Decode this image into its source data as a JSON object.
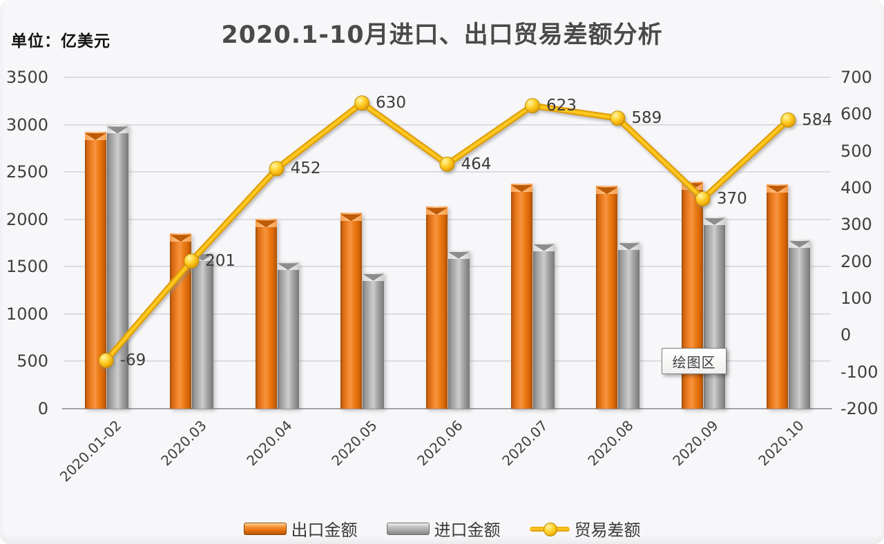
{
  "header": {
    "unit_label": "单位：亿美元",
    "title": "2020.1-10月进口、出口贸易差额分析"
  },
  "tooltip": {
    "text": "绘图区"
  },
  "chart_data": {
    "type": "combo-bar-line",
    "title": "2020.1-10月进口、出口贸易差额分析",
    "unit": "亿美元",
    "categories": [
      "2020.01-02",
      "2020.03",
      "2020.04",
      "2020.05",
      "2020.06",
      "2020.07",
      "2020.08",
      "2020.09",
      "2020.10"
    ],
    "series": [
      {
        "key": "export",
        "name": "出口金额",
        "chart": "bar",
        "axis": "left",
        "color": "#ED7420",
        "values": [
          2925,
          1851,
          2003,
          2068,
          2136,
          2376,
          2353,
          2398,
          2372
        ]
      },
      {
        "key": "import",
        "name": "进口金额",
        "chart": "bar",
        "axis": "left",
        "color": "#A9A9A9",
        "values": [
          2994,
          1650,
          1551,
          1438,
          1672,
          1753,
          1764,
          2028,
          1788
        ]
      },
      {
        "key": "balance",
        "name": "贸易差额",
        "chart": "line",
        "axis": "right",
        "color": "#FFC000",
        "values": [
          -69,
          201,
          452,
          630,
          464,
          623,
          589,
          370,
          584
        ],
        "point_labels": [
          "-69",
          "201",
          "452",
          "630",
          "464",
          "623",
          "589",
          "370",
          "584"
        ]
      }
    ],
    "left_axis": {
      "min": 0,
      "max": 3500,
      "step": 500,
      "tick_labels": [
        "0",
        "500",
        "1000",
        "1500",
        "2000",
        "2500",
        "3000",
        "3500"
      ]
    },
    "right_axis": {
      "min": -200,
      "max": 700,
      "step": 100,
      "tick_labels": [
        "-200",
        "-100",
        "0",
        "100",
        "200",
        "300",
        "400",
        "500",
        "600",
        "700"
      ]
    },
    "legend": {
      "position": "bottom",
      "items": [
        "出口金额",
        "进口金额",
        "贸易差额"
      ]
    },
    "grid": true
  }
}
